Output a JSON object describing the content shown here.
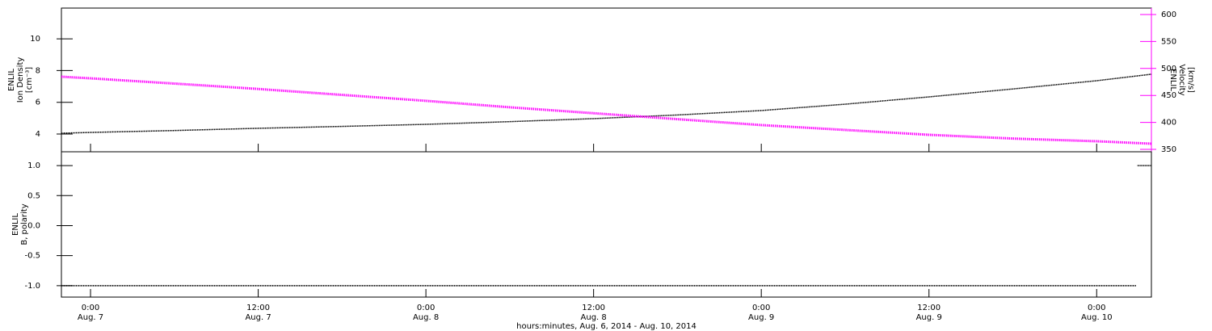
{
  "chart_data": [
    {
      "type": "line",
      "ylabel": [
        "ENLIL",
        "Ion Density",
        "[cm⁻³]"
      ],
      "y2label": [
        "ENLIL",
        "Velocity",
        "[km/s]"
      ],
      "xlim": [
        "2014-08-06T21:55",
        "2014-08-10T03:55"
      ],
      "ylim": [
        2.88,
        11.94
      ],
      "yticks": [
        4,
        6,
        8,
        10
      ],
      "y2lim": [
        345.5,
        612
      ],
      "y2ticks": [
        350,
        400,
        450,
        500,
        550,
        600
      ],
      "x": [
        "2014-08-06T21:55",
        "2014-08-07T00:00",
        "2014-08-07T06:00",
        "2014-08-07T12:00",
        "2014-08-07T18:00",
        "2014-08-08T00:00",
        "2014-08-08T06:00",
        "2014-08-08T12:00",
        "2014-08-08T18:00",
        "2014-08-09T00:00",
        "2014-08-09T06:00",
        "2014-08-09T12:00",
        "2014-08-09T18:00",
        "2014-08-10T00:00",
        "2014-08-10T03:55"
      ],
      "series": [
        {
          "color": "#000000",
          "values": [
            4.05,
            4.1,
            4.22,
            4.36,
            4.48,
            4.61,
            4.78,
            4.97,
            5.2,
            5.48,
            5.88,
            6.34,
            6.84,
            7.36,
            7.77
          ]
        },
        {
          "color": "#ff00ff",
          "axis": "y2",
          "values": [
            484.7,
            481.7,
            472,
            462,
            451,
            440,
            428,
            417,
            406,
            395,
            386,
            377,
            370,
            365,
            360.5
          ]
        }
      ]
    },
    {
      "type": "line",
      "ylabel": [
        "ENLIL",
        "B, polarity"
      ],
      "xlim": [
        "2014-08-06T21:55",
        "2014-08-10T03:55"
      ],
      "ylim": [
        -1.19,
        1.23
      ],
      "yticks": [
        {
          "value": -1,
          "label": "-1.0"
        },
        -0.5,
        {
          "value": 0,
          "label": "0.0"
        },
        0.5,
        {
          "value": 1,
          "label": "1.0"
        }
      ],
      "xticks": [
        {
          "value": "2014-08-07T00:00",
          "label": "0:00",
          "date_label": "Aug. 7"
        },
        {
          "value": "2014-08-07T12:00",
          "label": "12:00",
          "date_label": "Aug. 7"
        },
        {
          "value": "2014-08-08T00:00",
          "label": "0:00",
          "date_label": "Aug. 8"
        },
        {
          "value": "2014-08-08T12:00",
          "label": "12:00",
          "date_label": "Aug. 8"
        },
        {
          "value": "2014-08-09T00:00",
          "label": "0:00",
          "date_label": "Aug. 9"
        },
        {
          "value": "2014-08-09T12:00",
          "label": "12:00",
          "date_label": "Aug. 9"
        },
        {
          "value": "2014-08-10T00:00",
          "label": "0:00",
          "date_label": "Aug. 10"
        }
      ],
      "xlabel": "hours:minutes, Aug. 6, 2014 - Aug. 10, 2014",
      "x": [
        "2014-08-06T21:55",
        "2014-08-10T02:50",
        "2014-08-10T02:52",
        "2014-08-10T02:55",
        "2014-08-10T03:55"
      ],
      "series": [
        {
          "color": "#000000",
          "values": [
            -1,
            -1,
            null,
            1,
            1
          ]
        }
      ]
    }
  ]
}
